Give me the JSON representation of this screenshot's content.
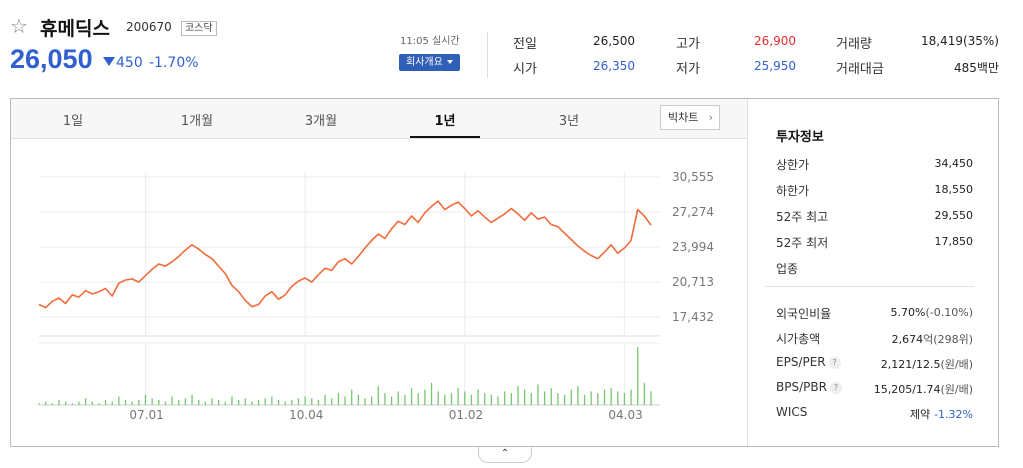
{
  "stock": {
    "favorite_icon": "star-outline-icon",
    "name": "휴메딕스",
    "code": "200670",
    "market": "코스닥",
    "price": "26,050",
    "change_value": "450",
    "change_pct": "-1.70%",
    "change_direction": "down",
    "color_down": "#2f5fd0",
    "color_up": "#e32d2d"
  },
  "time_info": {
    "time": "11:05 실시간",
    "company_button": "회사개요"
  },
  "quote": [
    {
      "label": "전일",
      "value": "26,500",
      "tone": "normal"
    },
    {
      "label": "고가",
      "value": "26,900",
      "tone": "red"
    },
    {
      "label": "거래량",
      "value": "18,419(35%)",
      "tone": "normal"
    },
    {
      "label": "시가",
      "value": "26,350",
      "tone": "blue"
    },
    {
      "label": "저가",
      "value": "25,950",
      "tone": "blue"
    },
    {
      "label": "거래대금",
      "value": "485백만",
      "tone": "normal"
    }
  ],
  "tabs": [
    "1일",
    "1개월",
    "3개월",
    "1년",
    "3년"
  ],
  "active_tab": "1년",
  "big_chart_label": "빅차트",
  "investment": {
    "title": "투자정보",
    "rows_top": [
      {
        "label": "상한가",
        "value": "34,450",
        "tone": "red"
      },
      {
        "label": "하한가",
        "value": "18,550",
        "tone": "blue"
      },
      {
        "label": "52주 최고",
        "value": "29,550",
        "tone": "normal"
      },
      {
        "label": "52주 최저",
        "value": "17,850",
        "tone": "normal"
      },
      {
        "label": "업종",
        "value": "",
        "tone": "normal"
      }
    ],
    "rows_bottom": [
      {
        "label": "외국인비율",
        "value": "5.70%",
        "sub": "(-0.10%)",
        "help": false
      },
      {
        "label": "시가총액",
        "value": "2,674",
        "sub": "억(298위)",
        "help": false
      },
      {
        "label": "EPS/PER",
        "value": "2,121/12.5",
        "sub": "(원/배)",
        "help": true
      },
      {
        "label": "BPS/PBR",
        "value": "15,205/1.74",
        "sub": "(원/배)",
        "help": true
      },
      {
        "label": "WICS",
        "value": "제약",
        "sub": "-1.32%",
        "help": false
      }
    ]
  },
  "chart_data": {
    "type": "line",
    "period": "1년",
    "yticks": [
      30555,
      27274,
      23994,
      20713,
      17432
    ],
    "ytick_labels": [
      "30,555",
      "27,274",
      "23,994",
      "20,713",
      "17,432"
    ],
    "xtick_labels": [
      "07.01",
      "10.04",
      "01.02",
      "04.03"
    ],
    "xtick_index": [
      16,
      40,
      64,
      88
    ],
    "line_color": "#f26b3a",
    "volume_color": "#74c96f",
    "grid": true,
    "price": [
      18600,
      18300,
      18900,
      19200,
      18700,
      19500,
      19300,
      19900,
      19600,
      19800,
      20100,
      19400,
      20600,
      20900,
      21000,
      20700,
      21300,
      21900,
      22400,
      22200,
      22600,
      23100,
      23700,
      24200,
      23800,
      23300,
      22900,
      22200,
      21500,
      20400,
      19800,
      19000,
      18400,
      18600,
      19400,
      19800,
      19100,
      19500,
      20300,
      20800,
      21100,
      20700,
      21400,
      22000,
      21800,
      22600,
      22900,
      22400,
      23100,
      23900,
      24600,
      25200,
      24800,
      25700,
      26400,
      26100,
      26900,
      26300,
      27200,
      27800,
      28300,
      27500,
      27900,
      28200,
      27600,
      26900,
      27400,
      26800,
      26300,
      26700,
      27100,
      27600,
      27100,
      26500,
      27200,
      26600,
      26800,
      26100,
      25900,
      25300,
      24700,
      24100,
      23600,
      23200,
      22900,
      23500,
      24200,
      23400,
      23900,
      24600,
      27500,
      26900,
      26050
    ],
    "volume": [
      1,
      2,
      1,
      3,
      2,
      1,
      2,
      4,
      2,
      1,
      3,
      2,
      5,
      3,
      2,
      3,
      6,
      4,
      3,
      2,
      5,
      3,
      4,
      6,
      3,
      2,
      4,
      3,
      2,
      5,
      3,
      4,
      2,
      3,
      4,
      5,
      3,
      2,
      3,
      4,
      5,
      4,
      3,
      6,
      4,
      7,
      5,
      9,
      6,
      4,
      5,
      11,
      7,
      5,
      8,
      6,
      10,
      7,
      9,
      13,
      8,
      6,
      7,
      10,
      8,
      6,
      9,
      7,
      6,
      5,
      8,
      7,
      11,
      9,
      7,
      12,
      8,
      10,
      7,
      6,
      9,
      11,
      6,
      8,
      7,
      9,
      10,
      8,
      7,
      9,
      34,
      13,
      8
    ]
  }
}
